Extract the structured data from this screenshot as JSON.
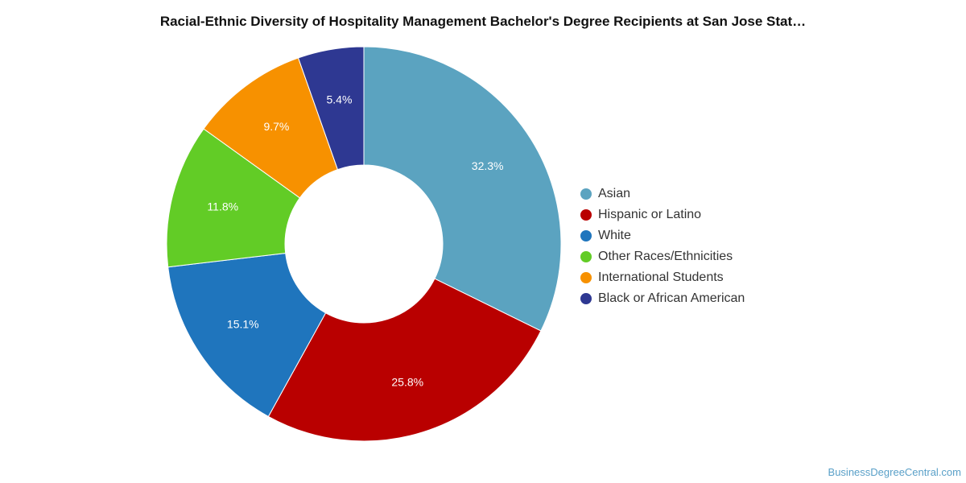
{
  "chart_data": {
    "type": "pie",
    "title": "Racial-Ethnic Diversity of Hospitality Management Bachelor's Degree Recipients at San Jose Stat…",
    "donut": true,
    "legend_position": "right",
    "slices": [
      {
        "label": "Asian",
        "value": 32.3,
        "display": "32.3%",
        "color": "#5ba3c0"
      },
      {
        "label": "Hispanic or Latino",
        "value": 25.8,
        "display": "25.8%",
        "color": "#b90000"
      },
      {
        "label": "White",
        "value": 15.1,
        "display": "15.1%",
        "color": "#1f75bd"
      },
      {
        "label": "Other Races/Ethnicities",
        "value": 11.8,
        "display": "11.8%",
        "color": "#62cc26"
      },
      {
        "label": "International Students",
        "value": 9.7,
        "display": "9.7%",
        "color": "#f79100"
      },
      {
        "label": "Black or African American",
        "value": 5.4,
        "display": "5.4%",
        "color": "#2e3892"
      }
    ]
  },
  "watermark": "BusinessDegreeCentral.com"
}
